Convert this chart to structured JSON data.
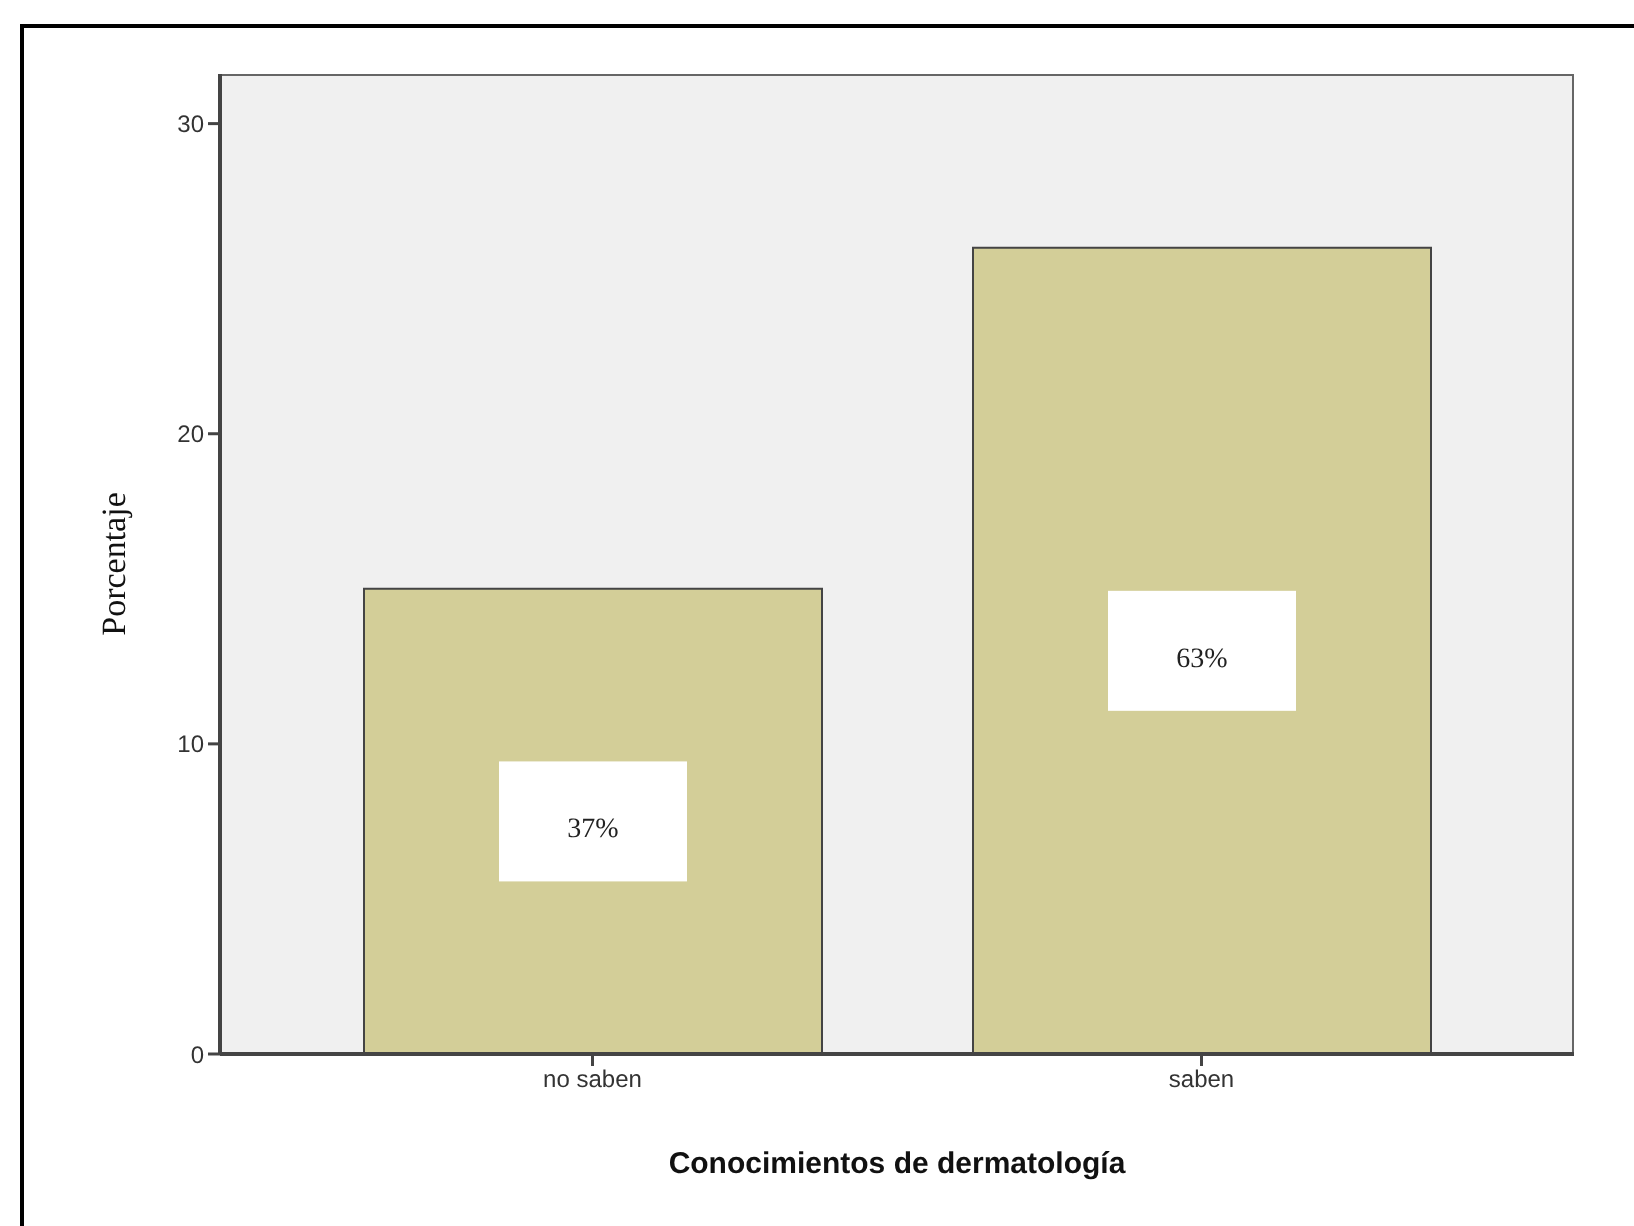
{
  "chart_data": {
    "type": "bar",
    "xlabel": "Conocimientos de dermatología",
    "ylabel": "Porcentaje",
    "categories": [
      "no saben",
      "saben"
    ],
    "values": [
      15,
      26
    ],
    "color": "#d3ce98",
    "annotations": [
      "37%",
      "63%"
    ],
    "ylim": [
      0,
      31.6
    ],
    "yticks": [
      0,
      10,
      20,
      30
    ]
  }
}
